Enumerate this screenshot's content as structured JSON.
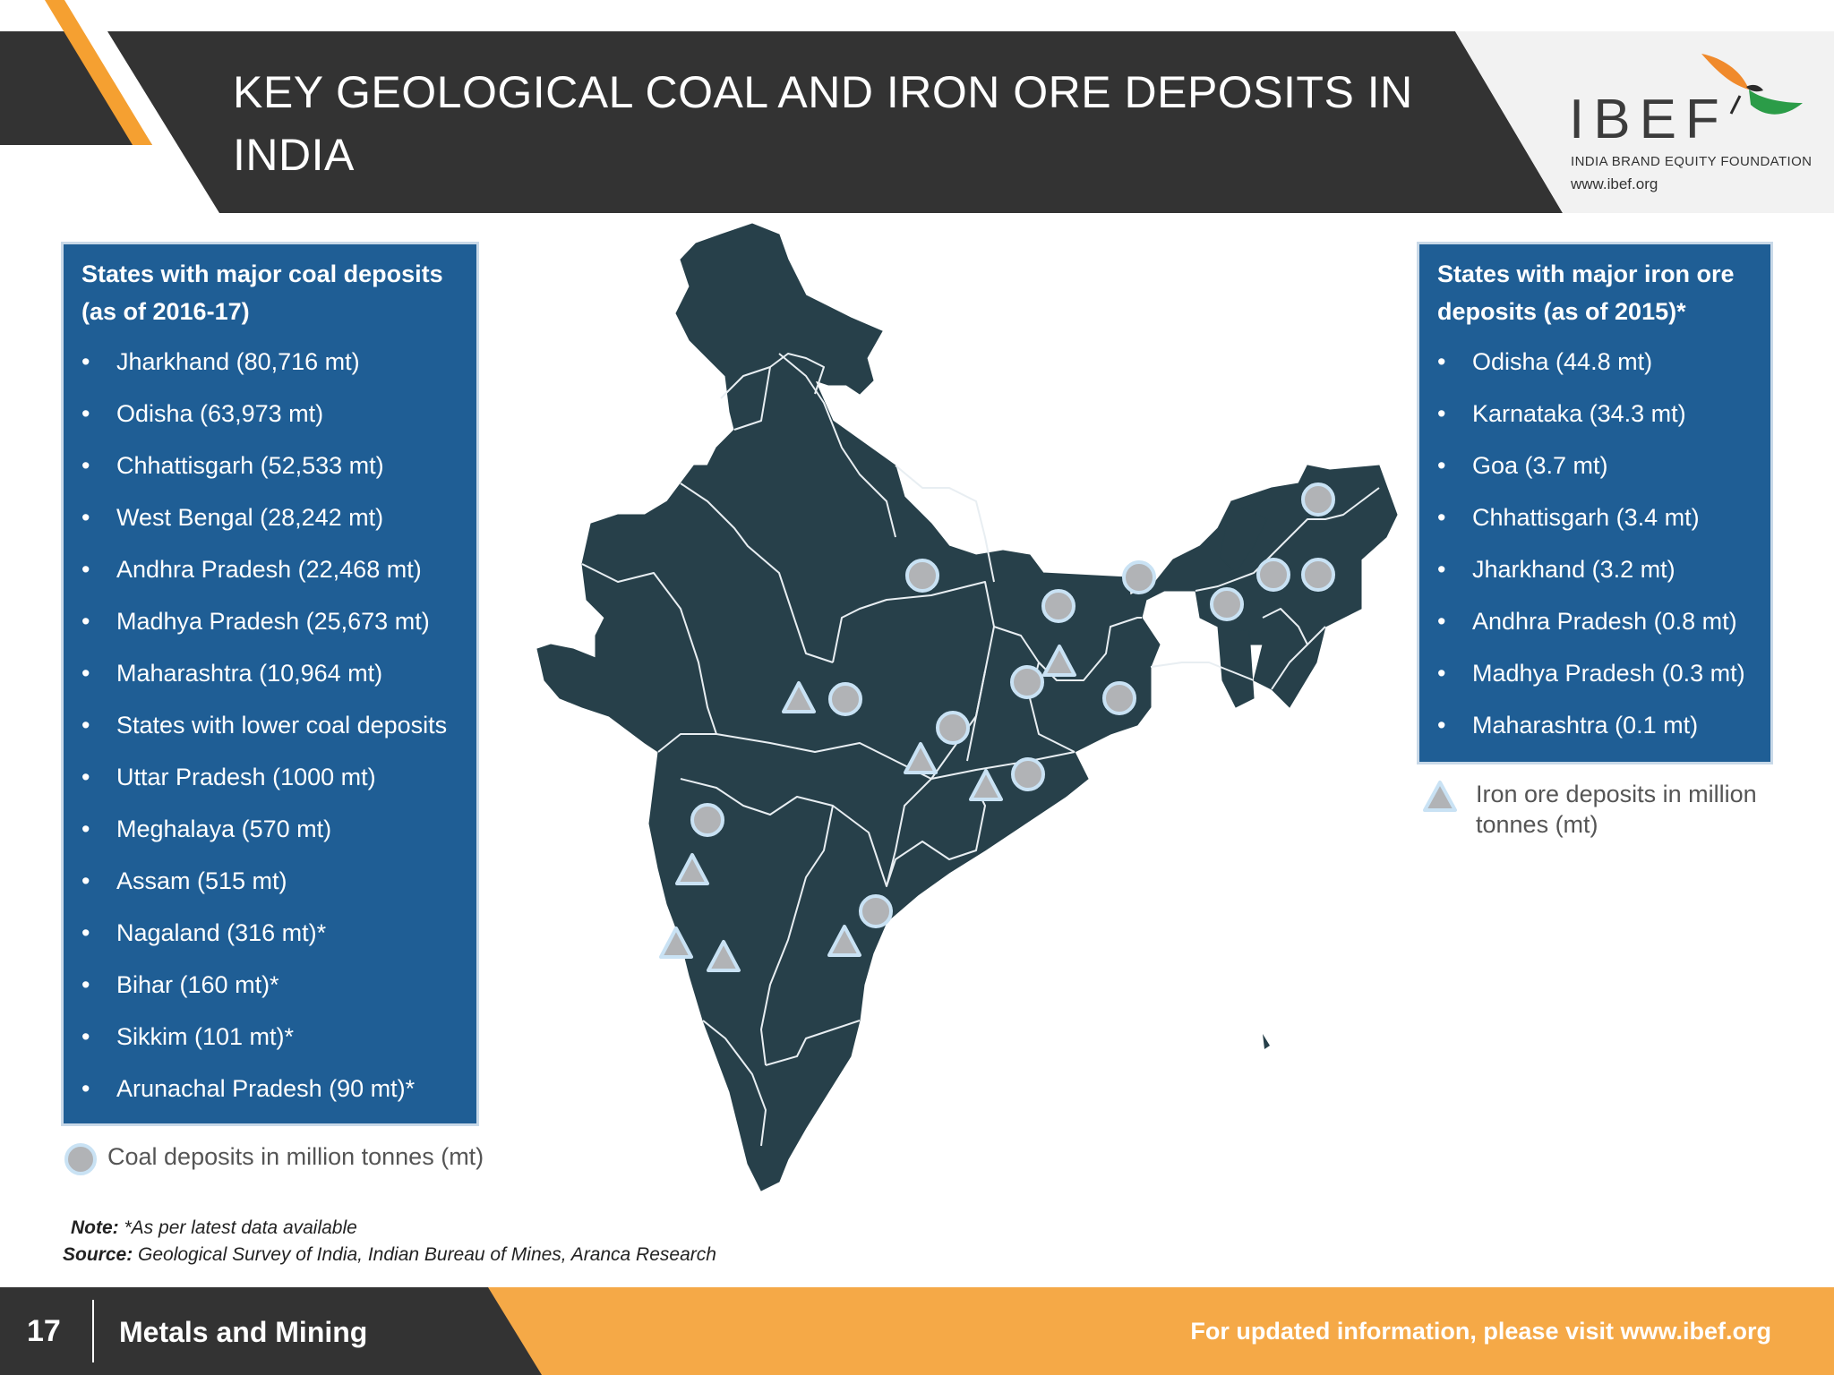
{
  "header": {
    "title": "KEY GEOLOGICAL COAL AND IRON ORE DEPOSITS IN INDIA",
    "colors": {
      "dark": "#333333",
      "accent": "#f5a031"
    }
  },
  "logo": {
    "name": "IBEF",
    "subtitle": "INDIA BRAND EQUITY FOUNDATION",
    "url": "www.ibef.org",
    "icon": "bird-logo-icon"
  },
  "coal_panel": {
    "heading": "States with major coal deposits (as of 2016-17)",
    "bullet": "•",
    "items": [
      "Jharkhand (80,716 mt)",
      "Odisha (63,973 mt)",
      "Chhattisgarh (52,533 mt)",
      "West Bengal (28,242 mt)",
      "Andhra Pradesh (22,468 mt)",
      "Madhya Pradesh (25,673 mt)",
      "Maharashtra (10,964 mt)",
      "States with lower coal deposits",
      "Uttar Pradesh (1000 mt)",
      "Meghalaya (570 mt)",
      "Assam (515 mt)",
      "Nagaland (316 mt)*",
      "Bihar (160 mt)*",
      "Sikkim (101 mt)*",
      "Arunachal Pradesh (90 mt)*"
    ]
  },
  "iron_panel": {
    "heading": "States with major iron ore deposits (as of 2015)*",
    "bullet": "•",
    "items": [
      "Odisha (44.8 mt)",
      "Karnataka (34.3 mt)",
      "Goa (3.7 mt)",
      "Chhattisgarh (3.4 mt)",
      "Jharkhand (3.2 mt)",
      "Andhra Pradesh (0.8 mt)",
      "Madhya Pradesh (0.3 mt)",
      "Maharashtra (0.1 mt)"
    ]
  },
  "legends": {
    "coal": "Coal deposits in million tonnes (mt)",
    "iron_line1": "Iron ore deposits in million",
    "iron_line2": "tonnes (mt)"
  },
  "map": {
    "icon": "india-map-icon",
    "colors": {
      "land": "#27404a",
      "marker_fill": "#b1b3b6",
      "marker_stroke": "#c9e2f4"
    }
  },
  "notes": {
    "note_label": "Note:",
    "note_text": " *As per latest data available",
    "source_label": "Source:",
    "source_text": " Geological Survey of India, Indian Bureau of Mines, Aranca Research"
  },
  "footer": {
    "page_number": "17",
    "section": "Metals and Mining",
    "visit_text": "For updated information, please visit www.ibef.org"
  }
}
